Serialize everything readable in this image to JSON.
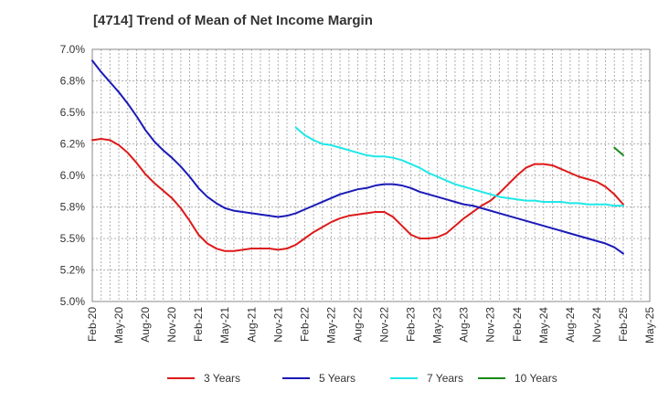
{
  "chart_data": {
    "type": "line",
    "title": "[4714]  Trend of Mean of Net Income Margin",
    "y_ticks": [
      "7.0%",
      "6.8%",
      "6.5%",
      "6.2%",
      "6.0%",
      "5.8%",
      "5.5%",
      "5.2%",
      "5.0%"
    ],
    "ylim": [
      5.0,
      7.0
    ],
    "x_ticks": [
      "Feb-20",
      "May-20",
      "Aug-20",
      "Nov-20",
      "Feb-21",
      "May-21",
      "Aug-21",
      "Nov-21",
      "Feb-22",
      "May-22",
      "Aug-22",
      "Nov-22",
      "Feb-23",
      "May-23",
      "Aug-23",
      "Nov-23",
      "Feb-24",
      "May-24",
      "Aug-24",
      "Nov-24",
      "Feb-25",
      "May-25"
    ],
    "x_range": [
      "Feb-20",
      "May-25"
    ],
    "grid": true,
    "legend_position": "bottom",
    "series": [
      {
        "name": "3 Years",
        "color": "#dd1a1a",
        "points": [
          [
            "Feb-20",
            6.28
          ],
          [
            "Mar-20",
            6.29
          ],
          [
            "Apr-20",
            6.28
          ],
          [
            "May-20",
            6.24
          ],
          [
            "Jun-20",
            6.18
          ],
          [
            "Jul-20",
            6.1
          ],
          [
            "Aug-20",
            6.01
          ],
          [
            "Sep-20",
            5.94
          ],
          [
            "Oct-20",
            5.88
          ],
          [
            "Nov-20",
            5.82
          ],
          [
            "Dec-20",
            5.74
          ],
          [
            "Jan-21",
            5.64
          ],
          [
            "Feb-21",
            5.53
          ],
          [
            "Mar-21",
            5.46
          ],
          [
            "Apr-21",
            5.42
          ],
          [
            "May-21",
            5.4
          ],
          [
            "Jun-21",
            5.4
          ],
          [
            "Jul-21",
            5.41
          ],
          [
            "Aug-21",
            5.42
          ],
          [
            "Sep-21",
            5.42
          ],
          [
            "Oct-21",
            5.42
          ],
          [
            "Nov-21",
            5.41
          ],
          [
            "Dec-21",
            5.42
          ],
          [
            "Jan-22",
            5.45
          ],
          [
            "Feb-22",
            5.5
          ],
          [
            "Mar-22",
            5.55
          ],
          [
            "Apr-22",
            5.59
          ],
          [
            "May-22",
            5.63
          ],
          [
            "Jun-22",
            5.66
          ],
          [
            "Jul-22",
            5.68
          ],
          [
            "Aug-22",
            5.69
          ],
          [
            "Sep-22",
            5.7
          ],
          [
            "Oct-22",
            5.71
          ],
          [
            "Nov-22",
            5.71
          ],
          [
            "Dec-22",
            5.67
          ],
          [
            "Jan-23",
            5.6
          ],
          [
            "Feb-23",
            5.53
          ],
          [
            "Mar-23",
            5.5
          ],
          [
            "Apr-23",
            5.5
          ],
          [
            "May-23",
            5.51
          ],
          [
            "Jun-23",
            5.54
          ],
          [
            "Jul-23",
            5.6
          ],
          [
            "Aug-23",
            5.66
          ],
          [
            "Sep-23",
            5.71
          ],
          [
            "Oct-23",
            5.76
          ],
          [
            "Nov-23",
            5.8
          ],
          [
            "Dec-23",
            5.86
          ],
          [
            "Jan-24",
            5.93
          ],
          [
            "Feb-24",
            6.0
          ],
          [
            "Mar-24",
            6.06
          ],
          [
            "Apr-24",
            6.09
          ],
          [
            "May-24",
            6.09
          ],
          [
            "Jun-24",
            6.08
          ],
          [
            "Jul-24",
            6.05
          ],
          [
            "Aug-24",
            6.02
          ],
          [
            "Sep-24",
            5.99
          ],
          [
            "Oct-24",
            5.97
          ],
          [
            "Nov-24",
            5.95
          ],
          [
            "Dec-24",
            5.91
          ],
          [
            "Jan-25",
            5.85
          ],
          [
            "Feb-25",
            5.77
          ]
        ]
      },
      {
        "name": "5 Years",
        "color": "#1a1ab8",
        "points": [
          [
            "Feb-20",
            6.91
          ],
          [
            "Mar-20",
            6.82
          ],
          [
            "Apr-20",
            6.74
          ],
          [
            "May-20",
            6.66
          ],
          [
            "Jun-20",
            6.57
          ],
          [
            "Jul-20",
            6.47
          ],
          [
            "Aug-20",
            6.36
          ],
          [
            "Sep-20",
            6.27
          ],
          [
            "Oct-20",
            6.2
          ],
          [
            "Nov-20",
            6.14
          ],
          [
            "Dec-20",
            6.07
          ],
          [
            "Jan-21",
            5.99
          ],
          [
            "Feb-21",
            5.9
          ],
          [
            "Mar-21",
            5.83
          ],
          [
            "Apr-21",
            5.78
          ],
          [
            "May-21",
            5.74
          ],
          [
            "Jun-21",
            5.72
          ],
          [
            "Jul-21",
            5.71
          ],
          [
            "Aug-21",
            5.7
          ],
          [
            "Sep-21",
            5.69
          ],
          [
            "Oct-21",
            5.68
          ],
          [
            "Nov-21",
            5.67
          ],
          [
            "Dec-21",
            5.68
          ],
          [
            "Jan-22",
            5.7
          ],
          [
            "Feb-22",
            5.73
          ],
          [
            "Mar-22",
            5.76
          ],
          [
            "Apr-22",
            5.79
          ],
          [
            "May-22",
            5.82
          ],
          [
            "Jun-22",
            5.85
          ],
          [
            "Jul-22",
            5.87
          ],
          [
            "Aug-22",
            5.89
          ],
          [
            "Sep-22",
            5.9
          ],
          [
            "Oct-22",
            5.92
          ],
          [
            "Nov-22",
            5.93
          ],
          [
            "Dec-22",
            5.93
          ],
          [
            "Jan-23",
            5.92
          ],
          [
            "Feb-23",
            5.9
          ],
          [
            "Mar-23",
            5.87
          ],
          [
            "Apr-23",
            5.85
          ],
          [
            "May-23",
            5.83
          ],
          [
            "Jun-23",
            5.81
          ],
          [
            "Jul-23",
            5.79
          ],
          [
            "Aug-23",
            5.77
          ],
          [
            "Sep-23",
            5.76
          ],
          [
            "Oct-23",
            5.74
          ],
          [
            "Nov-23",
            5.72
          ],
          [
            "Dec-23",
            5.7
          ],
          [
            "Jan-24",
            5.68
          ],
          [
            "Feb-24",
            5.66
          ],
          [
            "Mar-24",
            5.64
          ],
          [
            "Apr-24",
            5.62
          ],
          [
            "May-24",
            5.6
          ],
          [
            "Jun-24",
            5.58
          ],
          [
            "Jul-24",
            5.56
          ],
          [
            "Aug-24",
            5.54
          ],
          [
            "Sep-24",
            5.52
          ],
          [
            "Oct-24",
            5.5
          ],
          [
            "Nov-24",
            5.48
          ],
          [
            "Dec-24",
            5.46
          ],
          [
            "Jan-25",
            5.43
          ],
          [
            "Feb-25",
            5.38
          ]
        ]
      },
      {
        "name": "7 Years",
        "color": "#1fe8e8",
        "points": [
          [
            "Jan-22",
            6.38
          ],
          [
            "Feb-22",
            6.32
          ],
          [
            "Mar-22",
            6.28
          ],
          [
            "Apr-22",
            6.25
          ],
          [
            "May-22",
            6.24
          ],
          [
            "Jun-22",
            6.22
          ],
          [
            "Jul-22",
            6.2
          ],
          [
            "Aug-22",
            6.18
          ],
          [
            "Sep-22",
            6.16
          ],
          [
            "Oct-22",
            6.15
          ],
          [
            "Nov-22",
            6.15
          ],
          [
            "Dec-22",
            6.14
          ],
          [
            "Jan-23",
            6.12
          ],
          [
            "Feb-23",
            6.09
          ],
          [
            "Mar-23",
            6.06
          ],
          [
            "Apr-23",
            6.02
          ],
          [
            "May-23",
            5.99
          ],
          [
            "Jun-23",
            5.96
          ],
          [
            "Jul-23",
            5.93
          ],
          [
            "Aug-23",
            5.91
          ],
          [
            "Sep-23",
            5.89
          ],
          [
            "Oct-23",
            5.87
          ],
          [
            "Nov-23",
            5.85
          ],
          [
            "Dec-23",
            5.83
          ],
          [
            "Jan-24",
            5.82
          ],
          [
            "Feb-24",
            5.81
          ],
          [
            "Mar-24",
            5.8
          ],
          [
            "Apr-24",
            5.8
          ],
          [
            "May-24",
            5.79
          ],
          [
            "Jun-24",
            5.79
          ],
          [
            "Jul-24",
            5.79
          ],
          [
            "Aug-24",
            5.78
          ],
          [
            "Sep-24",
            5.78
          ],
          [
            "Oct-24",
            5.77
          ],
          [
            "Nov-24",
            5.77
          ],
          [
            "Dec-24",
            5.77
          ],
          [
            "Jan-25",
            5.76
          ],
          [
            "Feb-25",
            5.76
          ]
        ]
      },
      {
        "name": "10 Years",
        "color": "#1a8a1a",
        "points": [
          [
            "Jan-25",
            6.22
          ],
          [
            "Feb-25",
            6.16
          ]
        ]
      }
    ]
  }
}
